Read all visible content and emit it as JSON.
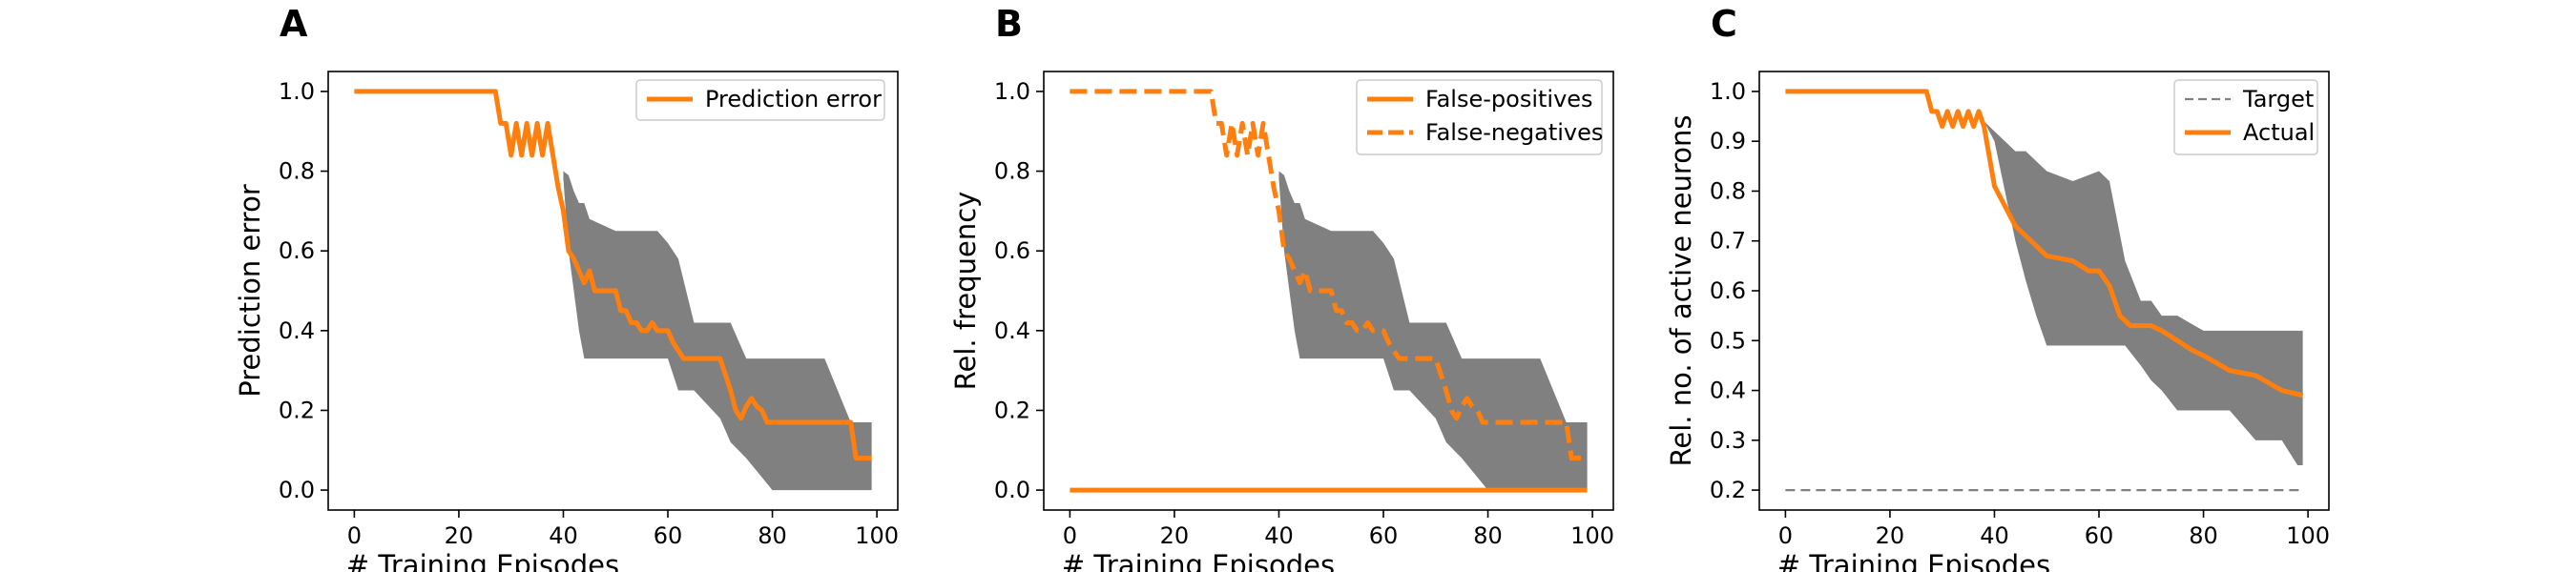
{
  "colors": {
    "accent": "#ff7f0e",
    "band": "#808080",
    "target": "#808080",
    "axis": "#000000"
  },
  "chart_data": [
    {
      "panel_label": "A",
      "type": "line",
      "xlabel": "# Training Episodes",
      "ylabel": "Prediction error",
      "xlim": [
        -5,
        104
      ],
      "ylim": [
        -0.05,
        1.05
      ],
      "xticks": [
        0,
        20,
        40,
        60,
        80,
        100
      ],
      "yticks": [
        0.0,
        0.2,
        0.4,
        0.6,
        0.8,
        1.0
      ],
      "ytick_labels": [
        "0.0",
        "0.2",
        "0.4",
        "0.6",
        "0.8",
        "1.0"
      ],
      "legend_position": "upper right",
      "band": {
        "x": [
          40,
          41,
          42,
          43,
          44,
          45,
          50,
          55,
          58,
          60,
          62,
          65,
          70,
          72,
          75,
          80,
          85,
          90,
          95,
          99
        ],
        "lower": [
          0.78,
          0.6,
          0.5,
          0.4,
          0.33,
          0.33,
          0.33,
          0.33,
          0.33,
          0.33,
          0.25,
          0.25,
          0.18,
          0.12,
          0.08,
          0.0,
          0.0,
          0.0,
          0.0,
          0.0
        ],
        "upper": [
          0.8,
          0.79,
          0.75,
          0.72,
          0.72,
          0.68,
          0.65,
          0.65,
          0.65,
          0.62,
          0.58,
          0.42,
          0.42,
          0.42,
          0.33,
          0.33,
          0.33,
          0.33,
          0.17,
          0.17
        ]
      },
      "series": [
        {
          "name": "Prediction error",
          "style": "solid",
          "x": [
            0,
            27,
            28,
            29,
            30,
            31,
            32,
            33,
            34,
            35,
            36,
            37,
            38,
            39,
            40,
            41,
            42,
            43,
            44,
            45,
            46,
            47,
            50,
            51,
            52,
            53,
            54,
            55,
            56,
            57,
            58,
            60,
            61,
            62,
            63,
            64,
            65,
            70,
            71,
            72,
            73,
            74,
            75,
            76,
            77,
            78,
            79,
            80,
            95,
            96,
            99
          ],
          "y": [
            1.0,
            1.0,
            0.92,
            0.92,
            0.84,
            0.92,
            0.84,
            0.92,
            0.84,
            0.92,
            0.84,
            0.92,
            0.84,
            0.76,
            0.7,
            0.6,
            0.58,
            0.55,
            0.52,
            0.55,
            0.5,
            0.5,
            0.5,
            0.45,
            0.45,
            0.42,
            0.42,
            0.4,
            0.4,
            0.42,
            0.4,
            0.4,
            0.37,
            0.35,
            0.33,
            0.33,
            0.33,
            0.33,
            0.29,
            0.25,
            0.2,
            0.18,
            0.21,
            0.23,
            0.21,
            0.2,
            0.17,
            0.17,
            0.17,
            0.08,
            0.08
          ]
        }
      ]
    },
    {
      "panel_label": "B",
      "type": "line",
      "xlabel": "# Training Episodes",
      "ylabel": "Rel. frequency",
      "xlim": [
        -5,
        104
      ],
      "ylim": [
        -0.05,
        1.05
      ],
      "xticks": [
        0,
        20,
        40,
        60,
        80,
        100
      ],
      "yticks": [
        0.0,
        0.2,
        0.4,
        0.6,
        0.8,
        1.0
      ],
      "ytick_labels": [
        "0.0",
        "0.2",
        "0.4",
        "0.6",
        "0.8",
        "1.0"
      ],
      "legend_position": "upper right",
      "band": {
        "x": [
          40,
          41,
          42,
          43,
          44,
          45,
          50,
          55,
          58,
          60,
          62,
          65,
          70,
          72,
          75,
          80,
          85,
          90,
          95,
          99
        ],
        "lower": [
          0.78,
          0.6,
          0.5,
          0.4,
          0.33,
          0.33,
          0.33,
          0.33,
          0.33,
          0.33,
          0.25,
          0.25,
          0.18,
          0.12,
          0.08,
          0.0,
          0.0,
          0.0,
          0.0,
          0.0
        ],
        "upper": [
          0.8,
          0.79,
          0.75,
          0.72,
          0.72,
          0.68,
          0.65,
          0.65,
          0.65,
          0.62,
          0.58,
          0.42,
          0.42,
          0.42,
          0.33,
          0.33,
          0.33,
          0.33,
          0.17,
          0.17
        ]
      },
      "series": [
        {
          "name": "False-positives",
          "style": "solid",
          "x": [
            0,
            99
          ],
          "y": [
            0.0,
            0.0
          ]
        },
        {
          "name": "False-negatives",
          "style": "dashed",
          "x": [
            0,
            27,
            28,
            29,
            30,
            31,
            32,
            33,
            34,
            35,
            36,
            37,
            38,
            39,
            40,
            41,
            42,
            43,
            44,
            45,
            46,
            47,
            50,
            51,
            52,
            53,
            54,
            55,
            56,
            57,
            58,
            60,
            61,
            62,
            63,
            64,
            65,
            70,
            71,
            72,
            73,
            74,
            75,
            76,
            77,
            78,
            79,
            80,
            95,
            96,
            99
          ],
          "y": [
            1.0,
            1.0,
            0.92,
            0.92,
            0.84,
            0.92,
            0.84,
            0.92,
            0.84,
            0.92,
            0.84,
            0.92,
            0.84,
            0.76,
            0.7,
            0.6,
            0.58,
            0.55,
            0.52,
            0.55,
            0.5,
            0.5,
            0.5,
            0.45,
            0.45,
            0.42,
            0.42,
            0.4,
            0.4,
            0.42,
            0.4,
            0.4,
            0.37,
            0.35,
            0.33,
            0.33,
            0.33,
            0.33,
            0.29,
            0.25,
            0.2,
            0.18,
            0.21,
            0.23,
            0.21,
            0.2,
            0.17,
            0.17,
            0.17,
            0.08,
            0.08
          ]
        }
      ]
    },
    {
      "panel_label": "C",
      "type": "line",
      "xlabel": "# Training Episodes",
      "ylabel": "Rel. no. of active neurons",
      "xlim": [
        -5,
        104
      ],
      "ylim": [
        0.16,
        1.04
      ],
      "xticks": [
        0,
        20,
        40,
        60,
        80,
        100
      ],
      "yticks": [
        0.2,
        0.3,
        0.4,
        0.5,
        0.6,
        0.7,
        0.8,
        0.9,
        1.0
      ],
      "ytick_labels": [
        "0.2",
        "0.3",
        "0.4",
        "0.5",
        "0.6",
        "0.7",
        "0.8",
        "0.9",
        "1.0"
      ],
      "legend_position": "upper right",
      "band": {
        "x": [
          38,
          40,
          42,
          44,
          46,
          48,
          50,
          55,
          60,
          62,
          65,
          68,
          70,
          72,
          75,
          80,
          85,
          90,
          95,
          98,
          99
        ],
        "lower": [
          0.94,
          0.9,
          0.8,
          0.7,
          0.62,
          0.55,
          0.49,
          0.49,
          0.49,
          0.49,
          0.49,
          0.45,
          0.42,
          0.4,
          0.36,
          0.36,
          0.36,
          0.3,
          0.3,
          0.25,
          0.25
        ],
        "upper": [
          0.94,
          0.92,
          0.9,
          0.88,
          0.88,
          0.86,
          0.84,
          0.82,
          0.84,
          0.82,
          0.66,
          0.58,
          0.58,
          0.55,
          0.55,
          0.52,
          0.52,
          0.52,
          0.52,
          0.52,
          0.52
        ]
      },
      "series": [
        {
          "name": "Target",
          "style": "dashed-thin",
          "x": [
            0,
            99
          ],
          "y": [
            0.2,
            0.2
          ]
        },
        {
          "name": "Actual",
          "style": "solid",
          "x": [
            0,
            27,
            28,
            29,
            30,
            31,
            32,
            33,
            34,
            35,
            36,
            37,
            38,
            40,
            42,
            44,
            46,
            48,
            50,
            55,
            58,
            60,
            62,
            64,
            66,
            70,
            72,
            75,
            78,
            80,
            85,
            90,
            95,
            99
          ],
          "y": [
            1.0,
            1.0,
            0.96,
            0.96,
            0.93,
            0.96,
            0.93,
            0.96,
            0.93,
            0.96,
            0.93,
            0.96,
            0.93,
            0.81,
            0.77,
            0.73,
            0.71,
            0.69,
            0.67,
            0.66,
            0.64,
            0.64,
            0.61,
            0.55,
            0.53,
            0.53,
            0.52,
            0.5,
            0.48,
            0.47,
            0.44,
            0.43,
            0.4,
            0.39
          ]
        }
      ]
    }
  ]
}
